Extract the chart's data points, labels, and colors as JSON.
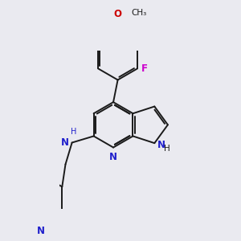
{
  "bg_color": "#eaeaf0",
  "bond_color": "#1a1a1a",
  "n_color": "#2020cc",
  "o_color": "#cc0000",
  "f_color": "#cc00cc",
  "bond_width": 1.4,
  "font_size": 8.5,
  "xlim": [
    -2.2,
    2.8
  ],
  "ylim": [
    -3.2,
    2.8
  ]
}
